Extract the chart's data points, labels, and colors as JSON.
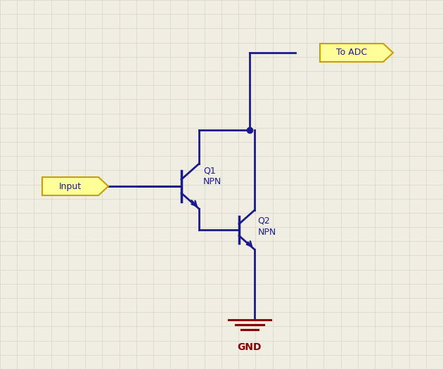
{
  "bg_color": "#f0ede3",
  "grid_color": "#d8d4c6",
  "wire_color": "#1a1a8c",
  "label_color": "#1a1a8c",
  "gnd_color": "#8b0000",
  "label_bg": "#ffff99",
  "label_border": "#c8a000",
  "input_label": "Input",
  "adc_label": "To ADC",
  "gnd_label": "GND",
  "q1_label": "Q1\nNPN",
  "q2_label": "Q2\nNPN"
}
